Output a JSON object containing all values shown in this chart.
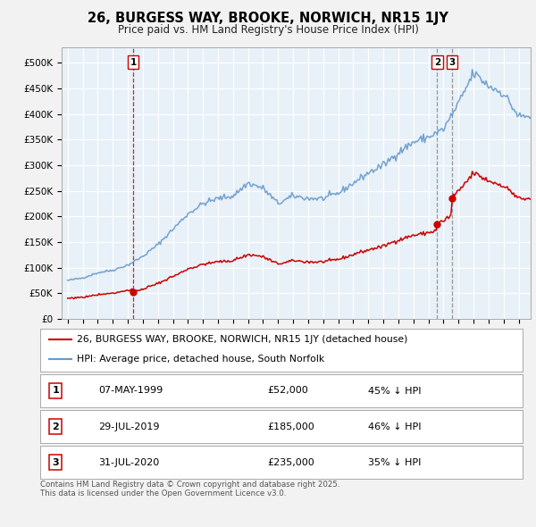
{
  "title": "26, BURGESS WAY, BROOKE, NORWICH, NR15 1JY",
  "subtitle": "Price paid vs. HM Land Registry's House Price Index (HPI)",
  "plot_bg_color": "#e8f0f8",
  "fig_bg_color": "#f2f2f2",
  "grid_color": "#ffffff",
  "sale_label": "26, BURGESS WAY, BROOKE, NORWICH, NR15 1JY (detached house)",
  "hpi_label": "HPI: Average price, detached house, South Norfolk",
  "sales": [
    {
      "label": "1",
      "date": "07-MAY-1999",
      "price": 52000,
      "pct": "45% ↓ HPI",
      "x_year": 1999.36,
      "vline_color": "#cc0000",
      "vline_style": "--"
    },
    {
      "label": "2",
      "date": "29-JUL-2019",
      "price": 185000,
      "pct": "46% ↓ HPI",
      "x_year": 2019.58,
      "vline_color": "#888888",
      "vline_style": "--"
    },
    {
      "label": "3",
      "date": "31-JUL-2020",
      "price": 235000,
      "pct": "35% ↓ HPI",
      "x_year": 2020.58,
      "vline_color": "#888888",
      "vline_style": "--"
    }
  ],
  "footer": "Contains HM Land Registry data © Crown copyright and database right 2025.\nThis data is licensed under the Open Government Licence v3.0.",
  "ylim": [
    0,
    530000
  ],
  "yticks": [
    0,
    50000,
    100000,
    150000,
    200000,
    250000,
    300000,
    350000,
    400000,
    450000,
    500000
  ],
  "ytick_labels": [
    "£0",
    "£50K",
    "£100K",
    "£150K",
    "£200K",
    "£250K",
    "£300K",
    "£350K",
    "£400K",
    "£450K",
    "£500K"
  ],
  "xlim_start": 1994.6,
  "xlim_end": 2025.8,
  "sale_color": "#cc0000",
  "hpi_color": "#6699cc",
  "sale_dot_color": "#cc0000"
}
